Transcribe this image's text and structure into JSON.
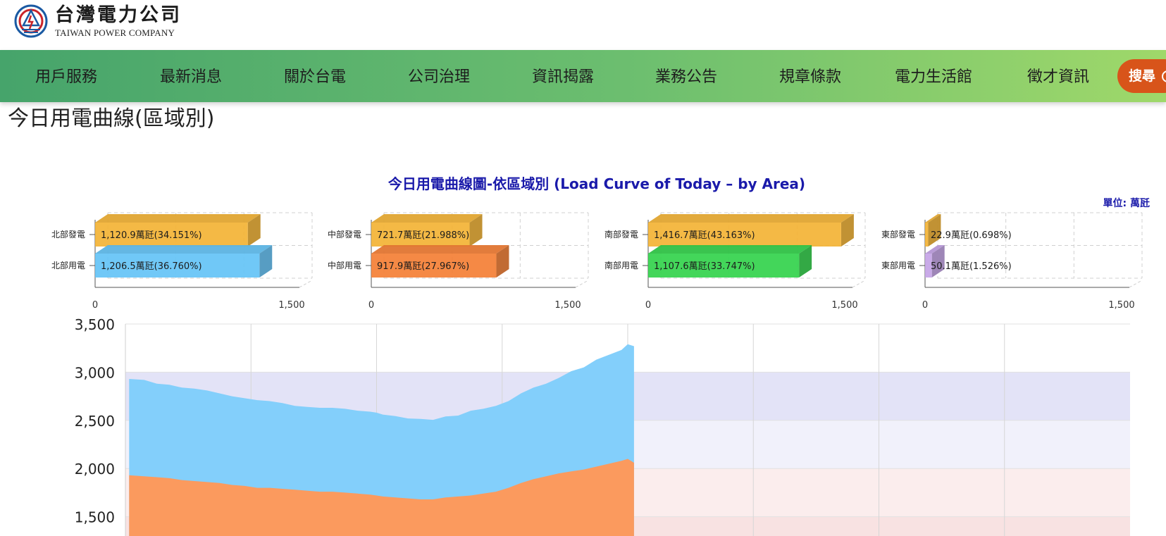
{
  "header": {
    "logo_cn": "台灣電力公司",
    "logo_en": "TAIWAN POWER COMPANY"
  },
  "nav": {
    "items": [
      "用戶服務",
      "最新消息",
      "關於台電",
      "公司治理",
      "資訊揭露",
      "業務公告",
      "規章條款",
      "電力生活館",
      "徵才資訊"
    ],
    "search_label": "搜尋"
  },
  "page": {
    "title": "今日用電曲線(區域別)"
  },
  "colors": {
    "nav_start": "#46a46b",
    "nav_end": "#9fd86a",
    "search_bg": "#d8541a",
    "chart_title": "#1a1aaa",
    "north_gen": "#f3b335",
    "north_load": "#64c3f6",
    "central_gen": "#f3b335",
    "central_load": "#f47f35",
    "south_gen": "#f3b335",
    "south_load": "#33d24c",
    "east_gen": "#f3b335",
    "east_load": "#c4a3e6",
    "area_blue": "#83cffb",
    "area_orange": "#fb9a5e"
  },
  "chart_data": [
    {
      "type": "bar",
      "title": "今日用電曲線圖-依區域別 (Load Curve of Today – by Area)",
      "unit": "單位: 萬瓩",
      "xlim": [
        0,
        1500
      ],
      "xticks": [
        "0",
        "1,500"
      ],
      "panels": [
        {
          "name": "north",
          "categories": [
            "北部發電",
            "北部用電"
          ],
          "values": [
            1120.9,
            1206.5
          ],
          "labels": [
            "1,120.9萬瓩(34.151%)",
            "1,206.5萬瓩(36.760%)"
          ]
        },
        {
          "name": "central",
          "categories": [
            "中部發電",
            "中部用電"
          ],
          "values": [
            721.7,
            917.9
          ],
          "labels": [
            "721.7萬瓩(21.988%)",
            "917.9萬瓩(27.967%)"
          ]
        },
        {
          "name": "south",
          "categories": [
            "南部發電",
            "南部用電"
          ],
          "values": [
            1416.7,
            1107.6
          ],
          "labels": [
            "1,416.7萬瓩(43.163%)",
            "1,107.6萬瓩(33.747%)"
          ]
        },
        {
          "name": "east",
          "categories": [
            "東部發電",
            "東部用電"
          ],
          "values": [
            22.9,
            50.1
          ],
          "labels": [
            "22.9萬瓩(0.698%)",
            "50.1萬瓩(1.526%)"
          ]
        }
      ]
    },
    {
      "type": "area",
      "ylim": [
        1300,
        3500
      ],
      "yticks": [
        "3,500",
        "3,000",
        "2,500",
        "2,000",
        "1,500"
      ],
      "ytick_values": [
        3500,
        3000,
        2500,
        2000,
        1500
      ],
      "x_range": [
        0,
        8
      ],
      "x_gridlines": [
        1,
        2,
        3,
        4,
        5,
        6,
        7
      ],
      "bands": [
        {
          "from": 2500,
          "to": 3000,
          "color": "#e3e3f7"
        },
        {
          "from": 2000,
          "to": 2500,
          "color": "#f1f1fb"
        },
        {
          "from": 1500,
          "to": 2000,
          "color": "#fbeded"
        },
        {
          "from": 1300,
          "to": 1500,
          "color": "#f8e2e2"
        }
      ],
      "x": [
        0.03,
        0.15,
        0.25,
        0.35,
        0.45,
        0.55,
        0.65,
        0.75,
        0.85,
        0.95,
        1.05,
        1.15,
        1.25,
        1.35,
        1.45,
        1.55,
        1.65,
        1.75,
        1.85,
        1.95,
        2.0,
        2.05,
        2.15,
        2.25,
        2.35,
        2.45,
        2.55,
        2.65,
        2.75,
        2.85,
        2.95,
        3.05,
        3.15,
        3.25,
        3.35,
        3.45,
        3.55,
        3.65,
        3.75,
        3.85,
        3.95,
        4.0,
        4.05
      ],
      "series": [
        {
          "values": [
            2930,
            2920,
            2880,
            2870,
            2840,
            2830,
            2810,
            2780,
            2750,
            2730,
            2710,
            2700,
            2680,
            2650,
            2640,
            2630,
            2630,
            2620,
            2600,
            2590,
            2580,
            2560,
            2545,
            2520,
            2515,
            2505,
            2540,
            2550,
            2600,
            2620,
            2650,
            2700,
            2780,
            2840,
            2880,
            2940,
            3010,
            3050,
            3130,
            3180,
            3230,
            3290,
            3270
          ]
        },
        {
          "values": [
            1930,
            1920,
            1910,
            1900,
            1880,
            1870,
            1860,
            1850,
            1830,
            1820,
            1800,
            1800,
            1790,
            1780,
            1770,
            1760,
            1760,
            1750,
            1740,
            1730,
            1720,
            1710,
            1700,
            1690,
            1680,
            1680,
            1700,
            1710,
            1720,
            1740,
            1760,
            1800,
            1850,
            1890,
            1920,
            1950,
            1970,
            1990,
            2020,
            2050,
            2080,
            2100,
            2060
          ]
        }
      ]
    }
  ]
}
